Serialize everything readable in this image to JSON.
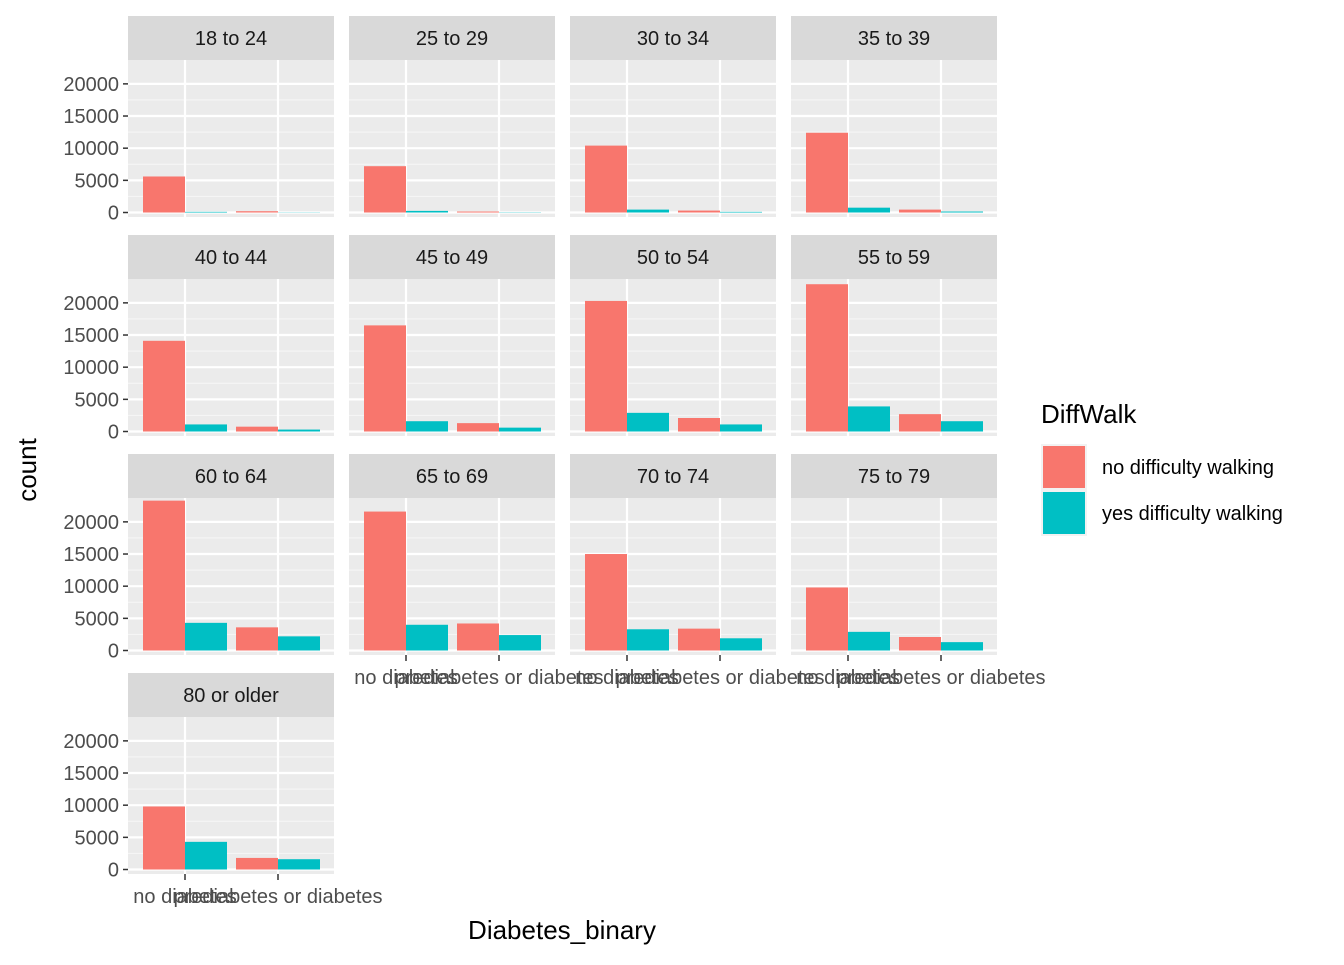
{
  "chart_data": {
    "type": "bar",
    "facet_by": "age group",
    "xlabel": "Diabetes_binary",
    "ylabel": "count",
    "ylim": [
      0,
      22000
    ],
    "yticks": [
      0,
      5000,
      10000,
      15000,
      20000
    ],
    "categories": [
      "no diabetes",
      "prediabetes or diabetes"
    ],
    "legend": {
      "title": "DiffWalk",
      "position": "right",
      "items": [
        {
          "label": "no difficulty walking",
          "color": "#F8766D"
        },
        {
          "label": "yes difficulty walking",
          "color": "#00BFC4"
        }
      ]
    },
    "grid": true,
    "facets": [
      {
        "label": "18 to 24",
        "values": {
          "no difficulty walking": [
            5600,
            200
          ],
          "yes difficulty walking": [
            100,
            30
          ]
        }
      },
      {
        "label": "25 to 29",
        "values": {
          "no difficulty walking": [
            7200,
            150
          ],
          "yes difficulty walking": [
            250,
            40
          ]
        }
      },
      {
        "label": "30 to 34",
        "values": {
          "no difficulty walking": [
            10400,
            300
          ],
          "yes difficulty walking": [
            450,
            100
          ]
        }
      },
      {
        "label": "35 to 39",
        "values": {
          "no difficulty walking": [
            12400,
            450
          ],
          "yes difficulty walking": [
            750,
            150
          ]
        }
      },
      {
        "label": "40 to 44",
        "values": {
          "no difficulty walking": [
            14100,
            750
          ],
          "yes difficulty walking": [
            1100,
            300
          ]
        }
      },
      {
        "label": "45 to 49",
        "values": {
          "no difficulty walking": [
            16500,
            1300
          ],
          "yes difficulty walking": [
            1600,
            600
          ]
        }
      },
      {
        "label": "50 to 54",
        "values": {
          "no difficulty walking": [
            20300,
            2100
          ],
          "yes difficulty walking": [
            2900,
            1100
          ]
        }
      },
      {
        "label": "55 to 59",
        "values": {
          "no difficulty walking": [
            22900,
            2700
          ],
          "yes difficulty walking": [
            3900,
            1600
          ]
        }
      },
      {
        "label": "60 to 64",
        "values": {
          "no difficulty walking": [
            23300,
            3600
          ],
          "yes difficulty walking": [
            4300,
            2200
          ]
        }
      },
      {
        "label": "65 to 69",
        "values": {
          "no difficulty walking": [
            21600,
            4200
          ],
          "yes difficulty walking": [
            4000,
            2400
          ]
        }
      },
      {
        "label": "70 to 74",
        "values": {
          "no difficulty walking": [
            15000,
            3400
          ],
          "yes difficulty walking": [
            3300,
            1900
          ]
        }
      },
      {
        "label": "75 to 79",
        "values": {
          "no difficulty walking": [
            9800,
            2100
          ],
          "yes difficulty walking": [
            2900,
            1300
          ]
        }
      },
      {
        "label": "80 or older",
        "values": {
          "no difficulty walking": [
            9800,
            1800
          ],
          "yes difficulty walking": [
            4300,
            1600
          ]
        }
      }
    ]
  }
}
